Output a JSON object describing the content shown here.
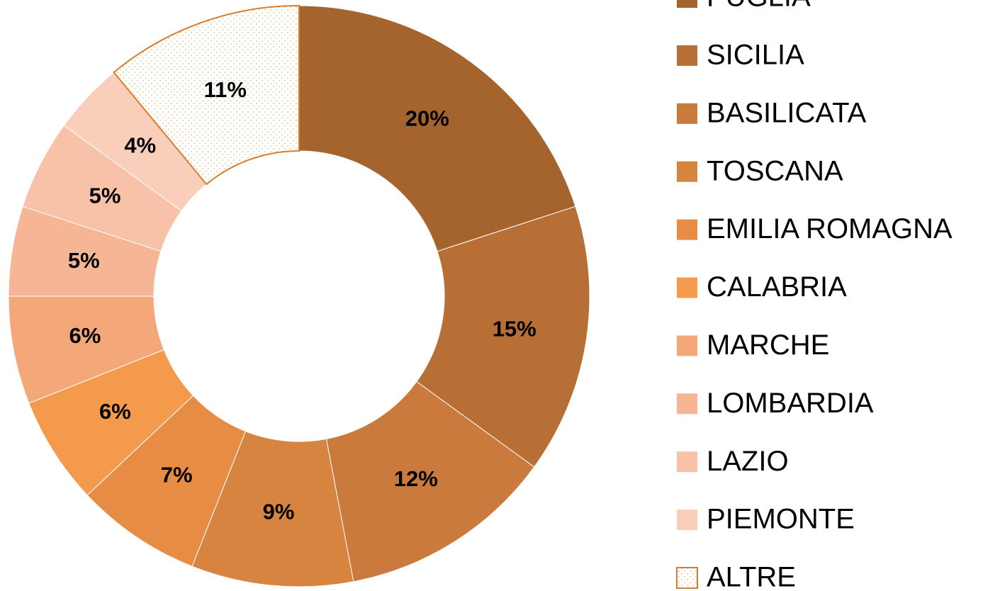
{
  "chart_data": {
    "type": "donut",
    "categories": [
      "PUGLIA",
      "SICILIA",
      "BASILICATA",
      "TOSCANA",
      "EMILIA ROMAGNA",
      "CALABRIA",
      "MARCHE",
      "LOMBARDIA",
      "LAZIO",
      "PIEMONTE",
      "ALTRE"
    ],
    "values": [
      20,
      15,
      12,
      9,
      7,
      6,
      6,
      5,
      5,
      4,
      11
    ],
    "value_labels": [
      "20%",
      "15%",
      "12%",
      "9%",
      "7%",
      "6%",
      "6%",
      "5%",
      "5%",
      "4%",
      "11%"
    ],
    "colors": [
      "#a5642e",
      "#b86f35",
      "#c97a3c",
      "#d6843f",
      "#e68c45",
      "#f39a4c",
      "#f4a87a",
      "#f6b594",
      "#f8c2a8",
      "#f9cfbb",
      "#ffffff"
    ],
    "patterns": [
      null,
      null,
      null,
      null,
      null,
      null,
      null,
      null,
      null,
      null,
      "dots"
    ],
    "pattern_color": "#d6802f",
    "legend": "right"
  }
}
